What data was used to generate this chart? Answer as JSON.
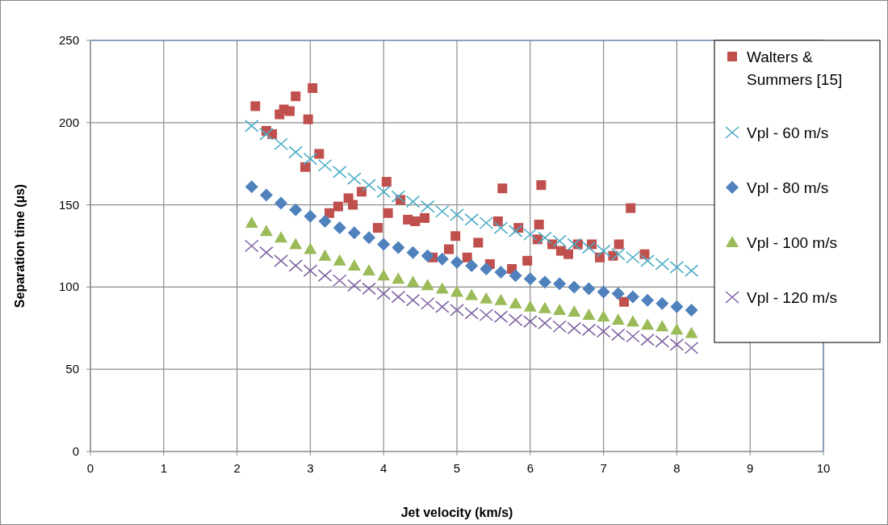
{
  "chart_data": {
    "type": "scatter",
    "xlabel": "Jet velocity (km/s)",
    "ylabel": "Separation time (µs)",
    "xlim": [
      0,
      10
    ],
    "ylim": [
      0,
      250
    ],
    "xticks": [
      0,
      1,
      2,
      3,
      4,
      5,
      6,
      7,
      8,
      9,
      10
    ],
    "yticks": [
      0,
      50,
      100,
      150,
      200,
      250
    ],
    "grid": true,
    "legend": "right",
    "series": [
      {
        "name": "Walters & Summers [15]",
        "color": "#c0504d",
        "marker": "square",
        "x": [
          2.25,
          2.4,
          2.48,
          2.58,
          2.64,
          2.72,
          2.8,
          2.93,
          2.97,
          3.03,
          3.12,
          3.26,
          3.38,
          3.52,
          3.58,
          3.7,
          3.92,
          4.04,
          4.06,
          4.23,
          4.33,
          4.43,
          4.56,
          4.67,
          4.89,
          4.98,
          5.14,
          5.29,
          5.45,
          5.56,
          5.62,
          5.75,
          5.84,
          5.96,
          6.1,
          6.12,
          6.15,
          6.3,
          6.42,
          6.52,
          6.65,
          6.84,
          6.95,
          7.13,
          7.21,
          7.28,
          7.37,
          7.56
        ],
        "values": [
          210,
          195,
          193,
          205,
          208,
          207,
          216,
          173,
          202,
          221,
          181,
          145,
          149,
          154,
          150,
          158,
          136,
          164,
          145,
          153,
          141,
          140,
          142,
          118,
          123,
          131,
          118,
          127,
          114,
          140,
          160,
          111,
          136,
          116,
          129,
          138,
          162,
          126,
          122,
          120,
          126,
          126,
          118,
          119,
          126,
          91,
          148,
          120
        ]
      },
      {
        "name": "Vpl - 60 m/s",
        "color": "#4bacc6",
        "marker": "cross",
        "x": [
          2.2,
          2.4,
          2.6,
          2.8,
          3.0,
          3.2,
          3.4,
          3.6,
          3.8,
          4.0,
          4.2,
          4.4,
          4.6,
          4.8,
          5.0,
          5.2,
          5.4,
          5.6,
          5.8,
          6.0,
          6.2,
          6.4,
          6.6,
          6.8,
          7.0,
          7.2,
          7.4,
          7.6,
          7.8,
          8.0,
          8.2
        ],
        "values": [
          198,
          193,
          187,
          182,
          178,
          174,
          170,
          166,
          162,
          158,
          155,
          152,
          149,
          146,
          144,
          141,
          139,
          136,
          134,
          132,
          130,
          128,
          126,
          124,
          122,
          120,
          118,
          116,
          114,
          112,
          110
        ]
      },
      {
        "name": "Vpl - 80 m/s",
        "color": "#4f81bd",
        "marker": "diamond",
        "x": [
          2.2,
          2.4,
          2.6,
          2.8,
          3.0,
          3.2,
          3.4,
          3.6,
          3.8,
          4.0,
          4.2,
          4.4,
          4.6,
          4.8,
          5.0,
          5.2,
          5.4,
          5.6,
          5.8,
          6.0,
          6.2,
          6.4,
          6.6,
          6.8,
          7.0,
          7.2,
          7.4,
          7.6,
          7.8,
          8.0,
          8.2
        ],
        "values": [
          161,
          156,
          151,
          147,
          143,
          140,
          136,
          133,
          130,
          126,
          124,
          121,
          119,
          117,
          115,
          113,
          111,
          109,
          107,
          105,
          103,
          102,
          100,
          99,
          97,
          96,
          94,
          92,
          90,
          88,
          86
        ]
      },
      {
        "name": "Vpl - 100 m/s",
        "color": "#9bbb59",
        "marker": "triangle",
        "x": [
          2.2,
          2.4,
          2.6,
          2.8,
          3.0,
          3.2,
          3.4,
          3.6,
          3.8,
          4.0,
          4.2,
          4.4,
          4.6,
          4.8,
          5.0,
          5.2,
          5.4,
          5.6,
          5.8,
          6.0,
          6.2,
          6.4,
          6.6,
          6.8,
          7.0,
          7.2,
          7.4,
          7.6,
          7.8,
          8.0,
          8.2
        ],
        "values": [
          139,
          134,
          130,
          126,
          123,
          119,
          116,
          113,
          110,
          107,
          105,
          103,
          101,
          99,
          97,
          95,
          93,
          92,
          90,
          88,
          87,
          86,
          85,
          83,
          82,
          80,
          79,
          77,
          76,
          74,
          72
        ]
      },
      {
        "name": "Vpl - 120 m/s",
        "color": "#8064a2",
        "marker": "cross",
        "x": [
          2.2,
          2.4,
          2.6,
          2.8,
          3.0,
          3.2,
          3.4,
          3.6,
          3.8,
          4.0,
          4.2,
          4.4,
          4.6,
          4.8,
          5.0,
          5.2,
          5.4,
          5.6,
          5.8,
          6.0,
          6.2,
          6.4,
          6.6,
          6.8,
          7.0,
          7.2,
          7.4,
          7.6,
          7.8,
          8.0,
          8.2
        ],
        "values": [
          125,
          121,
          116,
          113,
          110,
          107,
          104,
          101,
          99,
          96,
          94,
          92,
          90,
          88,
          86,
          84,
          83,
          82,
          80,
          79,
          78,
          76,
          75,
          74,
          73,
          71,
          70,
          68,
          67,
          65,
          63
        ]
      }
    ]
  }
}
